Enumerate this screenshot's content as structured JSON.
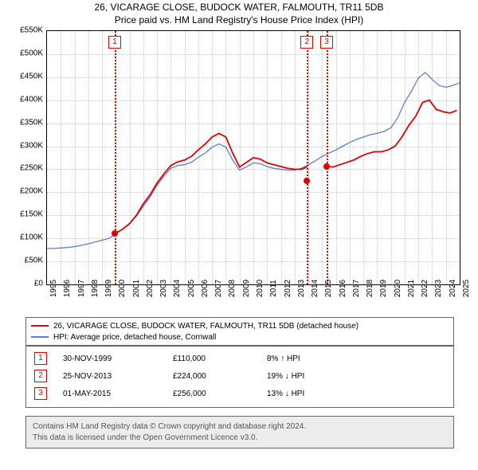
{
  "title": {
    "line1": "26, VICARAGE CLOSE, BUDOCK WATER, FALMOUTH, TR11 5DB",
    "line2": "Price paid vs. HM Land Registry's House Price Index (HPI)"
  },
  "chart": {
    "type": "line",
    "background_color": "#ffffff",
    "grid_color": "rgba(0,0,0,0.22)",
    "border_color": "#000000",
    "x": {
      "min": 1995,
      "max": 2025,
      "ticks": [
        1995,
        1996,
        1997,
        1998,
        1999,
        2000,
        2001,
        2002,
        2003,
        2004,
        2005,
        2006,
        2007,
        2008,
        2009,
        2010,
        2011,
        2012,
        2013,
        2014,
        2015,
        2016,
        2017,
        2018,
        2019,
        2020,
        2021,
        2022,
        2023,
        2024,
        2025
      ],
      "label_fontsize": 10
    },
    "y": {
      "min": 0,
      "max": 550000,
      "ticks": [
        0,
        50000,
        100000,
        150000,
        200000,
        250000,
        300000,
        350000,
        400000,
        450000,
        500000,
        550000
      ],
      "tick_labels": [
        "£0",
        "£50K",
        "£100K",
        "£150K",
        "£200K",
        "£250K",
        "£300K",
        "£350K",
        "£400K",
        "£450K",
        "£500K",
        "£550K"
      ],
      "label_fontsize": 10
    },
    "series": [
      {
        "id": "property",
        "label": "26, VICARAGE CLOSE, BUDOCK WATER, FALMOUTH, TR11 5DB (detached house)",
        "color": "#e00000",
        "line_width": 1.8,
        "segments": [
          {
            "x": [
              1999.92,
              2000.5,
              2001,
              2001.5,
              2002,
              2002.5,
              2003,
              2003.5,
              2004,
              2004.5,
              2005,
              2005.5,
              2006,
              2006.5,
              2007,
              2007.5,
              2008,
              2008.5,
              2009,
              2009.5,
              2010,
              2010.5,
              2011,
              2011.5,
              2012,
              2012.5,
              2013,
              2013.5,
              2013.9
            ],
            "y": [
              110000,
              120000,
              132000,
              150000,
              175000,
              195000,
              220000,
              240000,
              258000,
              266000,
              270000,
              278000,
              292000,
              305000,
              320000,
              328000,
              320000,
              285000,
              255000,
              265000,
              275000,
              272000,
              264000,
              260000,
              256000,
              252000,
              250000,
              250000,
              255000
            ]
          },
          {
            "x": [
              2015.33,
              2015.8,
              2016.3,
              2016.8,
              2017.3,
              2017.8,
              2018.3,
              2018.8,
              2019.3,
              2019.8,
              2020.3,
              2020.8,
              2021.3,
              2021.8,
              2022.3,
              2022.8,
              2023.3,
              2023.8,
              2024.3,
              2024.8
            ],
            "y": [
              256000,
              255000,
              260000,
              265000,
              270000,
              278000,
              284000,
              288000,
              288000,
              292000,
              300000,
              320000,
              345000,
              365000,
              395000,
              400000,
              380000,
              375000,
              372000,
              378000
            ]
          }
        ],
        "markers": [
          {
            "x": 1999.92,
            "y": 110000
          },
          {
            "x": 2013.9,
            "y": 224000
          },
          {
            "x": 2015.33,
            "y": 256000
          }
        ]
      },
      {
        "id": "hpi",
        "label": "HPI: Average price, detached house, Cornwall",
        "color": "#5b7fd6",
        "line_width": 1.3,
        "segments": [
          {
            "x": [
              1995,
              1995.5,
              1996,
              1996.5,
              1997,
              1997.5,
              1998,
              1998.5,
              1999,
              1999.5,
              2000,
              2000.5,
              2001,
              2001.5,
              2002,
              2002.5,
              2003,
              2003.5,
              2004,
              2004.5,
              2005,
              2005.5,
              2006,
              2006.5,
              2007,
              2007.5,
              2008,
              2008.5,
              2009,
              2009.5,
              2010,
              2010.5,
              2011,
              2011.5,
              2012,
              2012.5,
              2013,
              2013.5,
              2014,
              2014.5,
              2015,
              2015.5,
              2016,
              2016.5,
              2017,
              2017.5,
              2018,
              2018.5,
              2019,
              2019.5,
              2020,
              2020.5,
              2021,
              2021.5,
              2022,
              2022.5,
              2023,
              2023.5,
              2024,
              2024.5,
              2025
            ],
            "y": [
              78000,
              78000,
              79000,
              80000,
              82000,
              85000,
              88000,
              92000,
              96000,
              100000,
              110000,
              120000,
              132000,
              148000,
              170000,
              190000,
              215000,
              235000,
              252000,
              258000,
              260000,
              265000,
              276000,
              285000,
              298000,
              305000,
              298000,
              270000,
              248000,
              255000,
              264000,
              262000,
              256000,
              252000,
              250000,
              248000,
              248000,
              252000,
              260000,
              268000,
              278000,
              285000,
              292000,
              300000,
              308000,
              315000,
              320000,
              325000,
              328000,
              332000,
              340000,
              362000,
              395000,
              420000,
              448000,
              460000,
              445000,
              432000,
              428000,
              432000,
              438000
            ]
          }
        ]
      }
    ],
    "event_lines": [
      {
        "num": "1",
        "x": 1999.92
      },
      {
        "num": "2",
        "x": 2013.9
      },
      {
        "num": "3",
        "x": 2015.33
      }
    ]
  },
  "legend": {
    "rows": [
      {
        "color": "#e00000",
        "label": "26, VICARAGE CLOSE, BUDOCK WATER, FALMOUTH, TR11 5DB (detached house)"
      },
      {
        "color": "#5b7fd6",
        "label": "HPI: Average price, detached house, Cornwall"
      }
    ]
  },
  "events": [
    {
      "num": "1",
      "date": "30-NOV-1999",
      "price": "£110,000",
      "delta": "8%",
      "dir": "↑",
      "suffix": "HPI"
    },
    {
      "num": "2",
      "date": "25-NOV-2013",
      "price": "£224,000",
      "delta": "19%",
      "dir": "↓",
      "suffix": "HPI"
    },
    {
      "num": "3",
      "date": "01-MAY-2015",
      "price": "£256,000",
      "delta": "13%",
      "dir": "↓",
      "suffix": "HPI"
    }
  ],
  "footer": {
    "line1": "Contains HM Land Registry data © Crown copyright and database right 2024.",
    "line2": "This data is licensed under the Open Government Licence v3.0."
  }
}
